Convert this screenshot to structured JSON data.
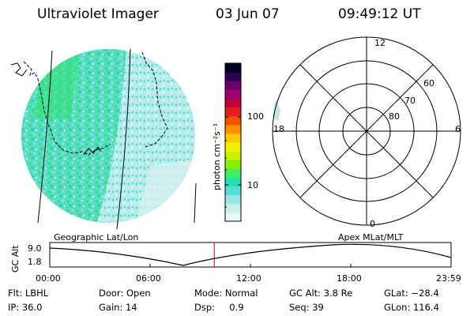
{
  "header": {
    "title": "Ultraviolet Imager",
    "date": "03 Jun 07",
    "time": "09:49:12 UT"
  },
  "colorbar": {
    "unit_label": "photon cm⁻²s⁻¹",
    "ticks": [
      "100",
      "10"
    ],
    "colors": [
      "#e8f8f8",
      "#c8eeee",
      "#9ae6e6",
      "#55dcd8",
      "#22e0b0",
      "#40ee60",
      "#88f000",
      "#c8f000",
      "#f0f000",
      "#f8c800",
      "#f89000",
      "#f05000",
      "#e02020",
      "#c00040",
      "#a00070",
      "#6a0070",
      "#300050",
      "#000020"
    ]
  },
  "polar": {
    "lat_labels": [
      "60",
      "70",
      "80"
    ],
    "mlt_labels": {
      "top": "12",
      "left": "18",
      "right": "6",
      "bottom": "0"
    }
  },
  "timeline": {
    "ylabel": "GC Alt",
    "ymax": "9.0",
    "ymin": "1.8",
    "left_caption": "Geographic Lat/Lon",
    "right_caption": "Apex  MLat/MLT",
    "ticks": [
      "00:00",
      "06:00",
      "12:00",
      "18:00",
      "23:59"
    ],
    "marker_time_fraction": 0.41
  },
  "status": {
    "filter": "Flt: LBHL",
    "ip": "IP: 36.0",
    "door": "Door: Open",
    "gain": "Gain: 14",
    "mode": "Mode: Normal",
    "dsp": "Dsp:     0.9",
    "gc_alt": "GC Alt: 3.8 Re",
    "seq": "Seq: 39",
    "glat": "GLat: −28.4",
    "glon": "GLon: 116.4"
  }
}
